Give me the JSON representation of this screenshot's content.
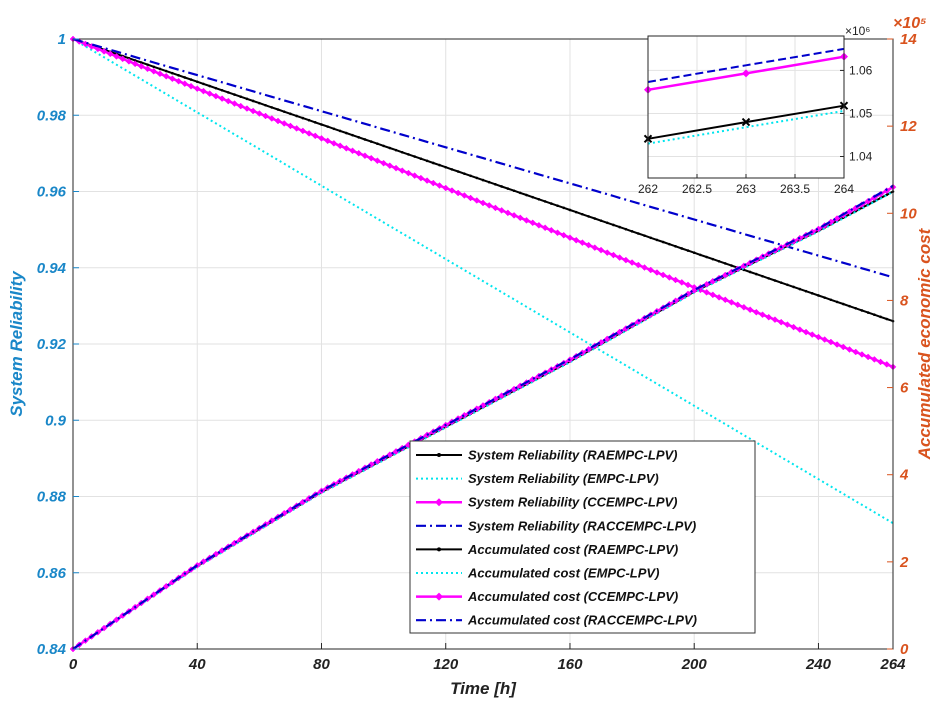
{
  "chart_data": [
    {
      "type": "line",
      "xlabel": "Time [h]",
      "ylabel": "System Reliability",
      "y2label": "Accumulated economic cost",
      "y2_exponent": "×10⁵",
      "xlim": [
        0,
        264
      ],
      "ylim": [
        0.84,
        1.0
      ],
      "y2lim": [
        0,
        14
      ],
      "xticks": [
        "0",
        "40",
        "80",
        "120",
        "160",
        "200",
        "240",
        "264"
      ],
      "xtick_values": [
        0,
        40,
        80,
        120,
        160,
        200,
        240,
        264
      ],
      "yticks": [
        "0.84",
        "0.86",
        "0.88",
        "0.9",
        "0.92",
        "0.94",
        "0.96",
        "0.98",
        "1"
      ],
      "ytick_values": [
        0.84,
        0.86,
        0.88,
        0.9,
        0.92,
        0.94,
        0.96,
        0.98,
        1.0
      ],
      "y2ticks": [
        "0",
        "2",
        "4",
        "6",
        "8",
        "10",
        "12",
        "14"
      ],
      "y2tick_values": [
        0,
        2,
        4,
        6,
        8,
        10,
        12,
        14
      ],
      "grid": true,
      "legend_position": "lower-right",
      "colors": {
        "left_axis": "#1a87c8",
        "right_axis": "#d9531e",
        "raempc": "#000000",
        "empc": "#00e5ee",
        "ccempc": "#ff00ff",
        "raccempc": "#0000cc",
        "grid": "#e2e2e2"
      },
      "series": [
        {
          "name": "System Reliability (RAEMPC-LPV)",
          "axis": "left",
          "style": "solid-dots",
          "color": "raempc",
          "x": [
            0,
            264
          ],
          "y": [
            1.0,
            0.926
          ]
        },
        {
          "name": "System Reliability (EMPC-LPV)",
          "axis": "left",
          "style": "dotted",
          "color": "empc",
          "x": [
            0,
            264
          ],
          "y": [
            1.0,
            0.873
          ]
        },
        {
          "name": "System Reliability (CCEMPC-LPV)",
          "axis": "left",
          "style": "diamonds",
          "color": "ccempc",
          "x": [
            0,
            264
          ],
          "y": [
            1.0,
            0.914
          ]
        },
        {
          "name": "System Reliability (RACCEMPC-LPV)",
          "axis": "left",
          "style": "dashdot",
          "color": "raccempc",
          "x": [
            0,
            264
          ],
          "y": [
            1.0,
            0.9375
          ]
        },
        {
          "name": "Accumulated cost (RAEMPC-LPV)",
          "axis": "right",
          "style": "solid-dots",
          "color": "raempc",
          "x": [
            0,
            40,
            80,
            120,
            160,
            200,
            240,
            264
          ],
          "y": [
            0,
            1.9,
            3.6,
            5.1,
            6.6,
            8.2,
            9.6,
            10.5
          ]
        },
        {
          "name": "Accumulated cost (EMPC-LPV)",
          "axis": "right",
          "style": "dotted",
          "color": "empc",
          "x": [
            0,
            40,
            80,
            120,
            160,
            200,
            240,
            264
          ],
          "y": [
            0,
            1.88,
            3.58,
            5.08,
            6.58,
            8.18,
            9.58,
            10.49
          ]
        },
        {
          "name": "Accumulated cost (CCEMPC-LPV)",
          "axis": "right",
          "style": "diamonds",
          "color": "ccempc",
          "x": [
            0,
            40,
            80,
            120,
            160,
            200,
            240,
            264
          ],
          "y": [
            0,
            1.92,
            3.63,
            5.14,
            6.64,
            8.23,
            9.64,
            10.6
          ]
        },
        {
          "name": "Accumulated cost (RACCEMPC-LPV)",
          "axis": "right",
          "style": "dashdot",
          "color": "raccempc",
          "x": [
            0,
            40,
            80,
            120,
            160,
            200,
            240,
            264
          ],
          "y": [
            0,
            1.92,
            3.63,
            5.14,
            6.65,
            8.24,
            9.65,
            10.63
          ]
        }
      ]
    },
    {
      "type": "line",
      "role": "inset",
      "xlim": [
        262,
        264
      ],
      "ylim": [
        1.035,
        1.068
      ],
      "y_exponent": "×10⁶",
      "xticks": [
        "262",
        "262.5",
        "263",
        "263.5",
        "264"
      ],
      "xtick_values": [
        262,
        262.5,
        263,
        263.5,
        264
      ],
      "yticks": [
        "1.04",
        "1.05",
        "1.06"
      ],
      "ytick_values": [
        1.04,
        1.05,
        1.06
      ],
      "series": [
        {
          "color": "raccempc",
          "style": "dashed",
          "x": [
            262,
            263,
            264
          ],
          "y": [
            1.0573,
            1.0612,
            1.065
          ]
        },
        {
          "color": "ccempc",
          "style": "diamonds",
          "x": [
            262,
            263,
            264
          ],
          "y": [
            1.0555,
            1.0593,
            1.0632
          ]
        },
        {
          "color": "raempc",
          "style": "solid-x",
          "x": [
            262,
            263,
            264
          ],
          "y": [
            1.0441,
            1.048,
            1.0518
          ]
        },
        {
          "color": "empc",
          "style": "dotted",
          "x": [
            262,
            263,
            264
          ],
          "y": [
            1.043,
            1.0468,
            1.0506
          ]
        }
      ]
    }
  ]
}
